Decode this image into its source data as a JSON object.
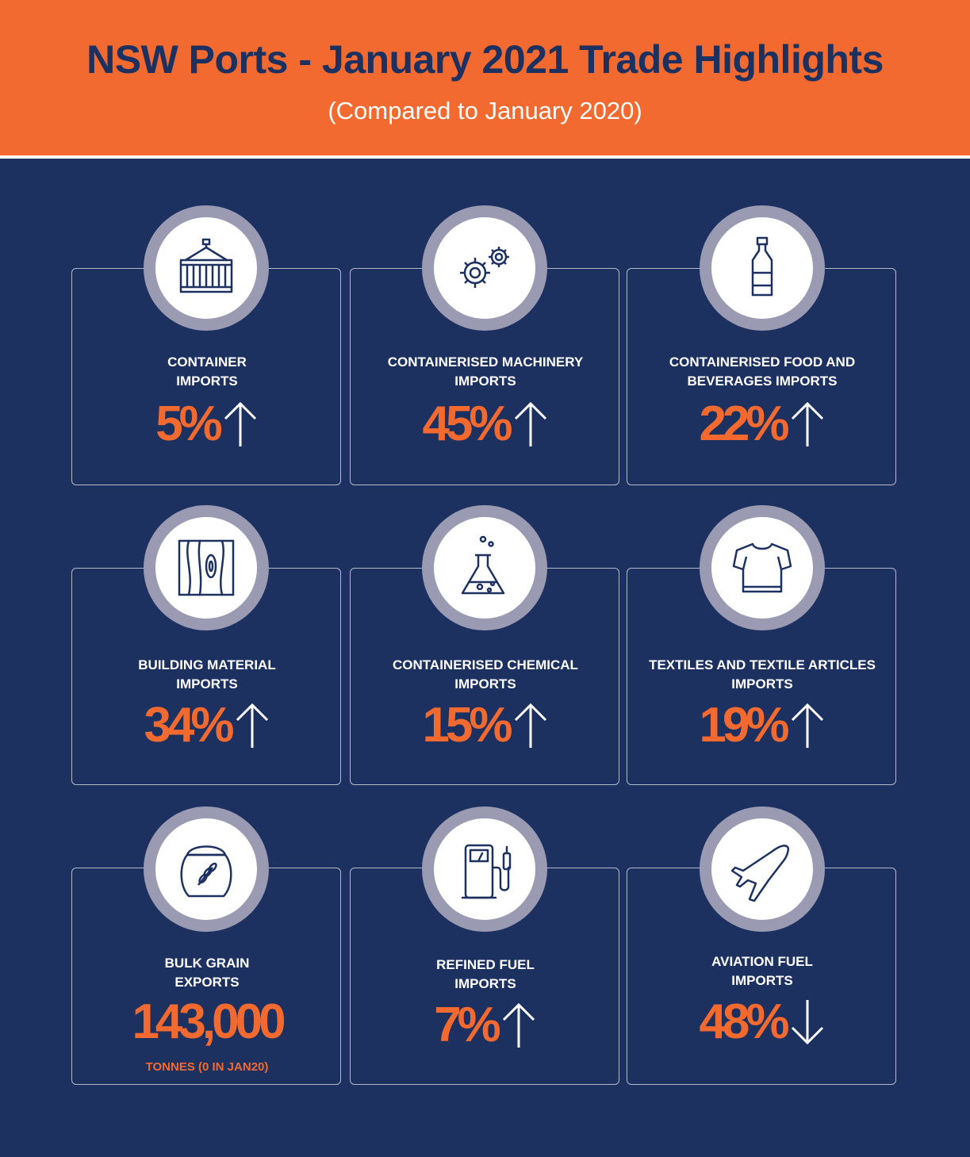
{
  "header": {
    "title": "NSW Ports - January 2021 Trade Highlights",
    "subtitle": "(Compared to January 2020)"
  },
  "colors": {
    "accent": "#f26a2f",
    "background": "#1d3160",
    "ring": "#9a9bb3",
    "text": "#ffffff"
  },
  "cards": [
    {
      "label": "CONTAINER\nIMPORTS",
      "value": "5%",
      "direction": "up",
      "icon": "shipping-container-icon"
    },
    {
      "label": "CONTAINERISED MACHINERY\nIMPORTS",
      "value": "45%",
      "direction": "up",
      "icon": "gears-icon"
    },
    {
      "label": "CONTAINERISED FOOD AND\nBEVERAGES IMPORTS",
      "value": "22%",
      "direction": "up",
      "icon": "bottle-icon"
    },
    {
      "label": "BUILDING MATERIAL\nIMPORTS",
      "value": "34%",
      "direction": "up",
      "icon": "timber-icon"
    },
    {
      "label": "CONTAINERISED CHEMICAL\nIMPORTS",
      "value": "15%",
      "direction": "up",
      "icon": "chemical-flask-icon"
    },
    {
      "label": "TEXTILES AND TEXTILE ARTICLES\nIMPORTS",
      "value": "19%",
      "direction": "up",
      "icon": "t-shirt-icon"
    },
    {
      "label": "BULK GRAIN\nEXPORTS",
      "value": "143,000",
      "direction": "none",
      "note": "TONNES (0 IN JAN20)",
      "icon": "grain-sack-icon"
    },
    {
      "label": "REFINED FUEL\nIMPORTS",
      "value": "7%",
      "direction": "up",
      "icon": "fuel-pump-icon"
    },
    {
      "label": "AVIATION FUEL\nIMPORTS",
      "value": "48%",
      "direction": "down",
      "icon": "airplane-icon"
    }
  ]
}
